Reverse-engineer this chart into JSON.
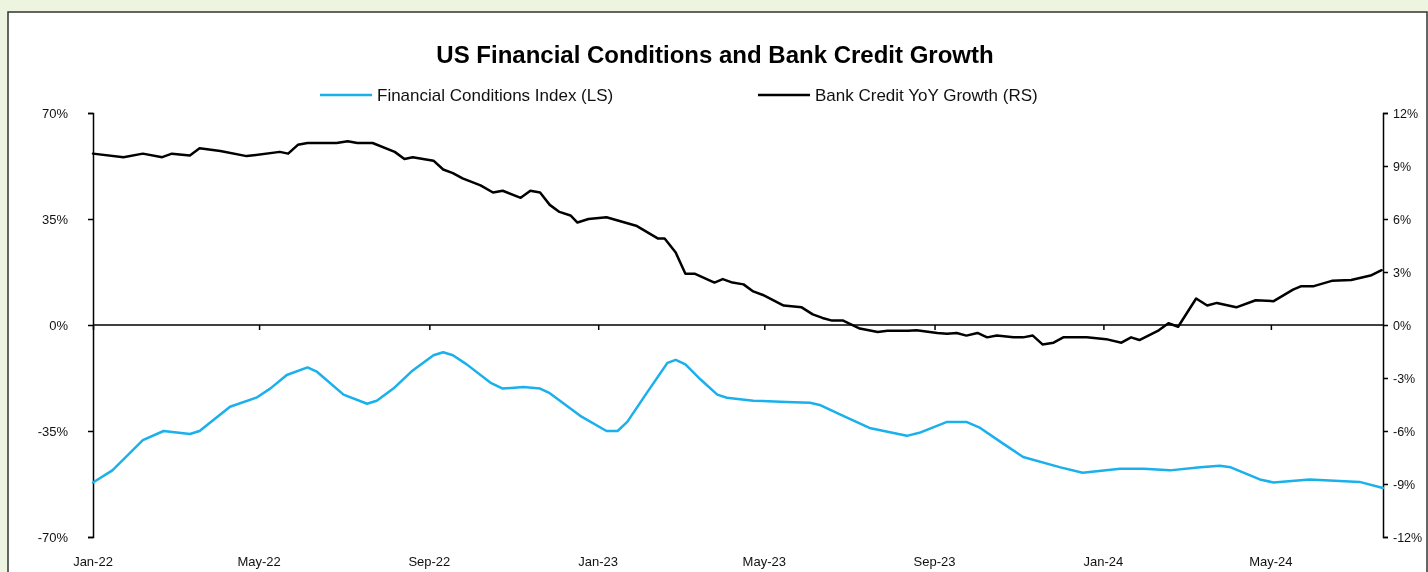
{
  "chart_data": {
    "type": "line",
    "title": "US Financial Conditions and Bank Credit Growth",
    "xlim": [
      "2022-01-01",
      "2024-07-21"
    ],
    "xticks": [
      {
        "value": "2022-01",
        "label": "Jan-22"
      },
      {
        "value": "2022-05",
        "label": "May-22"
      },
      {
        "value": "2022-09",
        "label": "Sep-22"
      },
      {
        "value": "2023-01",
        "label": "Jan-23"
      },
      {
        "value": "2023-05",
        "label": "May-23"
      },
      {
        "value": "2023-09",
        "label": "Sep-23"
      },
      {
        "value": "2024-01",
        "label": "Jan-24"
      },
      {
        "value": "2024-05",
        "label": "May-24"
      }
    ],
    "ylim": [
      -70,
      70
    ],
    "yticks": [
      {
        "value": -70,
        "label": "-70%"
      },
      {
        "value": -35,
        "label": "-35%"
      },
      {
        "value": 0,
        "label": "0%"
      },
      {
        "value": 35,
        "label": "35%"
      },
      {
        "value": 70,
        "label": "70%"
      }
    ],
    "y2lim": [
      -12,
      12
    ],
    "y2ticks": [
      {
        "value": -12,
        "label": "-12%"
      },
      {
        "value": -9,
        "label": "-9%"
      },
      {
        "value": -6,
        "label": "-6%"
      },
      {
        "value": -3,
        "label": "-3%"
      },
      {
        "value": 0,
        "label": "0%"
      },
      {
        "value": 3,
        "label": "3%"
      },
      {
        "value": 6,
        "label": "6%"
      },
      {
        "value": 9,
        "label": "9%"
      },
      {
        "value": 12,
        "label": "12%"
      }
    ],
    "ref_lines": [
      {
        "axis": "y",
        "value": 0,
        "color": "#000000"
      }
    ],
    "legend": "top",
    "grid": false,
    "marker": "none",
    "line_style": "solid",
    "series": [
      {
        "name": "Financial Conditions Index (LS)",
        "color": "#1ab0ec",
        "x": [
          "2022-01-01",
          "2022-01-15",
          "2022-02-06",
          "2022-02-21",
          "2022-03-12",
          "2022-03-19",
          "2022-04-10",
          "2022-04-29",
          "2022-05-09",
          "2022-05-21",
          "2022-06-05",
          "2022-06-12",
          "2022-07-01",
          "2022-07-18",
          "2022-07-25",
          "2022-08-06",
          "2022-08-20",
          "2022-09-04",
          "2022-09-11",
          "2022-09-18",
          "2022-09-28",
          "2022-10-15",
          "2022-10-24",
          "2022-11-08",
          "2022-11-20",
          "2022-11-27",
          "2022-12-19",
          "2023-01-07",
          "2023-01-15",
          "2023-01-22",
          "2023-02-05",
          "2023-02-20",
          "2023-02-26",
          "2023-03-05",
          "2023-03-16",
          "2023-03-28",
          "2023-04-04",
          "2023-04-23",
          "2023-05-17",
          "2023-06-03",
          "2023-06-10",
          "2023-06-27",
          "2023-07-16",
          "2023-08-12",
          "2023-08-21",
          "2023-09-10",
          "2023-09-17",
          "2023-09-24",
          "2023-10-04",
          "2023-10-20",
          "2023-11-04",
          "2023-12-01",
          "2023-12-17",
          "2024-01-13",
          "2024-01-30",
          "2024-02-18",
          "2024-03-11",
          "2024-03-25",
          "2024-04-02",
          "2024-04-23",
          "2024-05-03",
          "2024-05-29",
          "2024-07-04",
          "2024-07-21"
        ],
        "values": [
          -52,
          -48,
          -38,
          -35,
          -36,
          -35,
          -27,
          -24,
          -21,
          -16.5,
          -14,
          -15.5,
          -23,
          -26,
          -25,
          -21,
          -15,
          -10,
          -9,
          -10,
          -13,
          -19,
          -21,
          -20.5,
          -21,
          -22.5,
          -30,
          -35,
          -35,
          -32,
          -22.5,
          -12.5,
          -11.5,
          -13,
          -18,
          -23,
          -24,
          -25,
          -25.4,
          -25.7,
          -26.4,
          -30,
          -34,
          -36.6,
          -35.6,
          -32,
          -32,
          -32,
          -34,
          -39,
          -43.6,
          -47,
          -48.8,
          -47.5,
          -47.5,
          -48,
          -47,
          -46.5,
          -47,
          -51,
          -52,
          -51,
          -51.8,
          -53.8
        ]
      },
      {
        "name": "Bank Credit YoY Growth (RS)",
        "color": "#000000",
        "axis": "y2",
        "x": [
          "2022-01-01",
          "2022-01-23",
          "2022-02-06",
          "2022-02-20",
          "2022-02-27",
          "2022-03-12",
          "2022-03-19",
          "2022-04-03",
          "2022-04-22",
          "2022-05-16",
          "2022-05-22",
          "2022-05-29",
          "2022-06-05",
          "2022-06-26",
          "2022-07-04",
          "2022-07-11",
          "2022-07-22",
          "2022-08-07",
          "2022-08-14",
          "2022-08-20",
          "2022-09-04",
          "2022-09-11",
          "2022-09-18",
          "2022-09-25",
          "2022-10-08",
          "2022-10-17",
          "2022-10-24",
          "2022-11-06",
          "2022-11-13",
          "2022-11-20",
          "2022-11-27",
          "2022-12-04",
          "2022-12-12",
          "2022-12-17",
          "2022-12-25",
          "2023-01-07",
          "2023-01-29",
          "2023-02-13",
          "2023-02-18",
          "2023-02-26",
          "2023-03-05",
          "2023-03-12",
          "2023-03-26",
          "2023-04-01",
          "2023-04-08",
          "2023-04-16",
          "2023-04-23",
          "2023-04-30",
          "2023-05-15",
          "2023-05-28",
          "2023-06-05",
          "2023-06-12",
          "2023-06-19",
          "2023-06-27",
          "2023-07-09",
          "2023-07-22",
          "2023-07-29",
          "2023-08-13",
          "2023-08-19",
          "2023-09-03",
          "2023-09-10",
          "2023-09-17",
          "2023-09-24",
          "2023-10-02",
          "2023-10-09",
          "2023-10-16",
          "2023-10-28",
          "2023-11-04",
          "2023-11-11",
          "2023-11-18",
          "2023-11-26",
          "2023-12-03",
          "2023-12-20",
          "2024-01-03",
          "2024-01-14",
          "2024-01-21",
          "2024-01-27",
          "2024-02-10",
          "2024-02-17",
          "2024-02-24",
          "2024-03-08",
          "2024-03-16",
          "2024-03-23",
          "2024-04-06",
          "2024-04-20",
          "2024-05-03",
          "2024-05-17",
          "2024-05-23",
          "2024-06-01",
          "2024-06-14",
          "2024-06-28",
          "2024-07-12",
          "2024-07-20"
        ],
        "values": [
          9.7,
          9.5,
          9.7,
          9.5,
          9.7,
          9.6,
          10.0,
          9.85,
          9.56,
          9.8,
          9.7,
          10.2,
          10.3,
          10.3,
          10.4,
          10.3,
          10.3,
          9.8,
          9.4,
          9.5,
          9.3,
          8.8,
          8.6,
          8.3,
          7.9,
          7.5,
          7.6,
          7.2,
          7.6,
          7.5,
          6.8,
          6.4,
          6.2,
          5.8,
          6.0,
          6.1,
          5.6,
          4.9,
          4.9,
          4.1,
          2.9,
          2.9,
          2.4,
          2.6,
          2.4,
          2.3,
          1.9,
          1.7,
          1.1,
          1.0,
          0.6,
          0.4,
          0.25,
          0.25,
          -0.2,
          -0.4,
          -0.33,
          -0.33,
          -0.3,
          -0.45,
          -0.5,
          -0.45,
          -0.6,
          -0.45,
          -0.7,
          -0.6,
          -0.7,
          -0.7,
          -0.6,
          -1.1,
          -1.0,
          -0.7,
          -0.7,
          -0.8,
          -1.0,
          -0.7,
          -0.85,
          -0.3,
          0.1,
          -0.1,
          1.5,
          1.1,
          1.25,
          1.0,
          1.4,
          1.35,
          2.0,
          2.2,
          2.2,
          2.5,
          2.55,
          2.8,
          3.1
        ]
      }
    ]
  }
}
